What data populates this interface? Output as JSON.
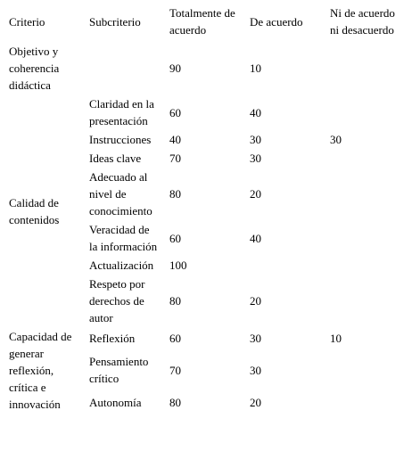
{
  "table": {
    "headers": [
      "Criterio",
      "Subcriterio",
      "Totalmente de acuerdo",
      "De acuerdo",
      "Ni de acuerdo ni desacuerdo"
    ],
    "groups": [
      {
        "criterion": "Objetivo y coherencia didáctica",
        "rows": [
          {
            "total": 90,
            "agree": 10
          }
        ]
      },
      {
        "criterion": "Calidad de contenidos",
        "rows": [
          {
            "sub": "Claridad en la presentación",
            "total": 60,
            "agree": 40
          },
          {
            "sub": "Instrucciones",
            "total": 40,
            "agree": 30,
            "neutral": 30
          },
          {
            "sub": "Ideas clave",
            "total": 70,
            "agree": 30
          },
          {
            "sub": "Adecuado al nivel de conocimiento",
            "total": 80,
            "agree": 20
          },
          {
            "sub": "Veracidad de la información",
            "total": 60,
            "agree": 40
          },
          {
            "sub": "Actualización",
            "total": 100
          },
          {
            "sub": "Respeto por derechos de autor",
            "total": 80,
            "agree": 20
          }
        ]
      },
      {
        "criterion": "Capacidad de generar reflexión, crítica e innovación",
        "rows": [
          {
            "sub": "Reflexión",
            "total": 60,
            "agree": 30,
            "neutral": 10
          },
          {
            "sub": "Pensamiento crítico",
            "total": 70,
            "agree": 30
          },
          {
            "sub": "Autonomía",
            "total": 80,
            "agree": 20
          }
        ]
      }
    ]
  }
}
